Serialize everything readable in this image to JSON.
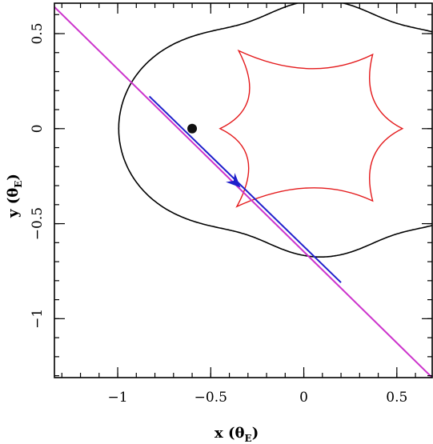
{
  "chart_data": {
    "type": "line",
    "title": "",
    "xlabel": "x (θ",
    "xlabel_sub": "E",
    "xlabel_close": ")",
    "ylabel": "y (θ",
    "ylabel_sub": "E",
    "ylabel_close": ")",
    "xlim": [
      -1.34,
      0.69
    ],
    "ylim": [
      -1.31,
      0.66
    ],
    "xticks": [
      {
        "value": -1,
        "label": "−1"
      },
      {
        "value": -0.5,
        "label": "−0.5"
      },
      {
        "value": 0,
        "label": "0"
      },
      {
        "value": 0.5,
        "label": "0.5"
      }
    ],
    "yticks": [
      {
        "value": 0.5,
        "label": "0.5"
      },
      {
        "value": 0,
        "label": "0"
      },
      {
        "value": -0.5,
        "label": "−0.5"
      },
      {
        "value": -1,
        "label": "−1"
      }
    ],
    "x_minor_step": 0.1,
    "y_minor_step": 0.1,
    "grid": false,
    "colors": {
      "critical_curve": "#000000",
      "caustic": "#e41a1c",
      "trajectory_outer": "#cc33cc",
      "trajectory_inner": "#1f1fcc",
      "source_marker": "#111111"
    },
    "critical_curve_params": {
      "d": 0.6,
      "q_lens": 0.25
    },
    "series": [
      {
        "role": "trajectory",
        "color": "#cc33cc",
        "x": [
          -1.34,
          0.69
        ],
        "y": [
          0.64,
          -1.31
        ]
      },
      {
        "role": "trajectory-highlight",
        "color": "#1f1fcc",
        "x": [
          -0.83,
          0.2
        ],
        "y": [
          0.17,
          -0.81
        ]
      }
    ],
    "markers": [
      {
        "name": "lens-dot",
        "x": -0.6,
        "y": 0.0,
        "shape": "circle"
      },
      {
        "name": "direction-arrow",
        "x": -0.34,
        "y": -0.31,
        "shape": "arrowhead"
      }
    ]
  }
}
